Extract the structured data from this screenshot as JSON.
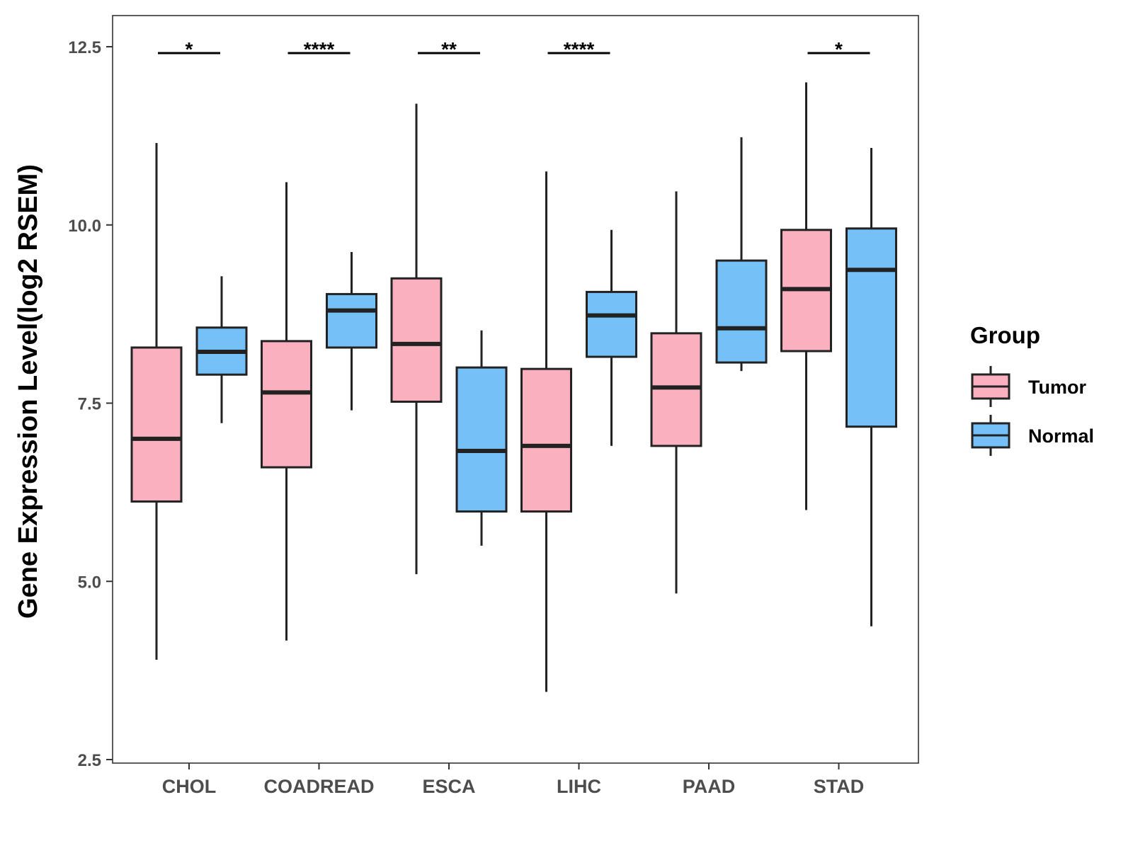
{
  "chart_data": {
    "type": "boxplot",
    "title": "",
    "xlabel": "",
    "ylabel": "Gene Expression Level(log2 RSEM)",
    "ylim": [
      2.5,
      12.5
    ],
    "yticks": [
      2.5,
      5.0,
      7.5,
      10.0,
      12.5
    ],
    "ytick_labels": [
      "2.5",
      "5.0",
      "7.5",
      "10.0",
      "12.5"
    ],
    "categories": [
      "CHOL",
      "COADREAD",
      "ESCA",
      "LIHC",
      "PAAD",
      "STAD"
    ],
    "legend": {
      "title": "Group",
      "position": "right"
    },
    "series": [
      {
        "name": "Tumor",
        "color": "#fbb0c0",
        "boxes": [
          {
            "min": 3.9,
            "q1": 6.12,
            "median": 7.0,
            "q3": 8.28,
            "max": 11.15
          },
          {
            "min": 4.17,
            "q1": 6.6,
            "median": 7.65,
            "q3": 8.37,
            "max": 10.6
          },
          {
            "min": 5.1,
            "q1": 7.52,
            "median": 8.33,
            "q3": 9.25,
            "max": 11.7
          },
          {
            "min": 3.45,
            "q1": 5.98,
            "median": 6.9,
            "q3": 7.98,
            "max": 10.75
          },
          {
            "min": 4.83,
            "q1": 6.9,
            "median": 7.72,
            "q3": 8.48,
            "max": 10.47
          },
          {
            "min": 6.0,
            "q1": 8.23,
            "median": 9.1,
            "q3": 9.93,
            "max": 12.0
          }
        ]
      },
      {
        "name": "Normal",
        "color": "#75c0f7",
        "boxes": [
          {
            "min": 7.22,
            "q1": 7.9,
            "median": 8.22,
            "q3": 8.56,
            "max": 9.28
          },
          {
            "min": 7.4,
            "q1": 8.28,
            "median": 8.8,
            "q3": 9.03,
            "max": 9.62
          },
          {
            "min": 5.5,
            "q1": 5.98,
            "median": 6.83,
            "q3": 8.0,
            "max": 8.52
          },
          {
            "min": 6.9,
            "q1": 8.15,
            "median": 8.73,
            "q3": 9.06,
            "max": 9.93
          },
          {
            "min": 7.95,
            "q1": 8.07,
            "median": 8.55,
            "q3": 9.5,
            "max": 11.23
          },
          {
            "min": 4.37,
            "q1": 7.17,
            "median": 9.37,
            "q3": 9.95,
            "max": 11.08
          }
        ]
      }
    ],
    "significance": [
      {
        "category": "CHOL",
        "label": "*"
      },
      {
        "category": "COADREAD",
        "label": "****"
      },
      {
        "category": "ESCA",
        "label": "**"
      },
      {
        "category": "LIHC",
        "label": "****"
      },
      {
        "category": "STAD",
        "label": "*"
      }
    ]
  }
}
